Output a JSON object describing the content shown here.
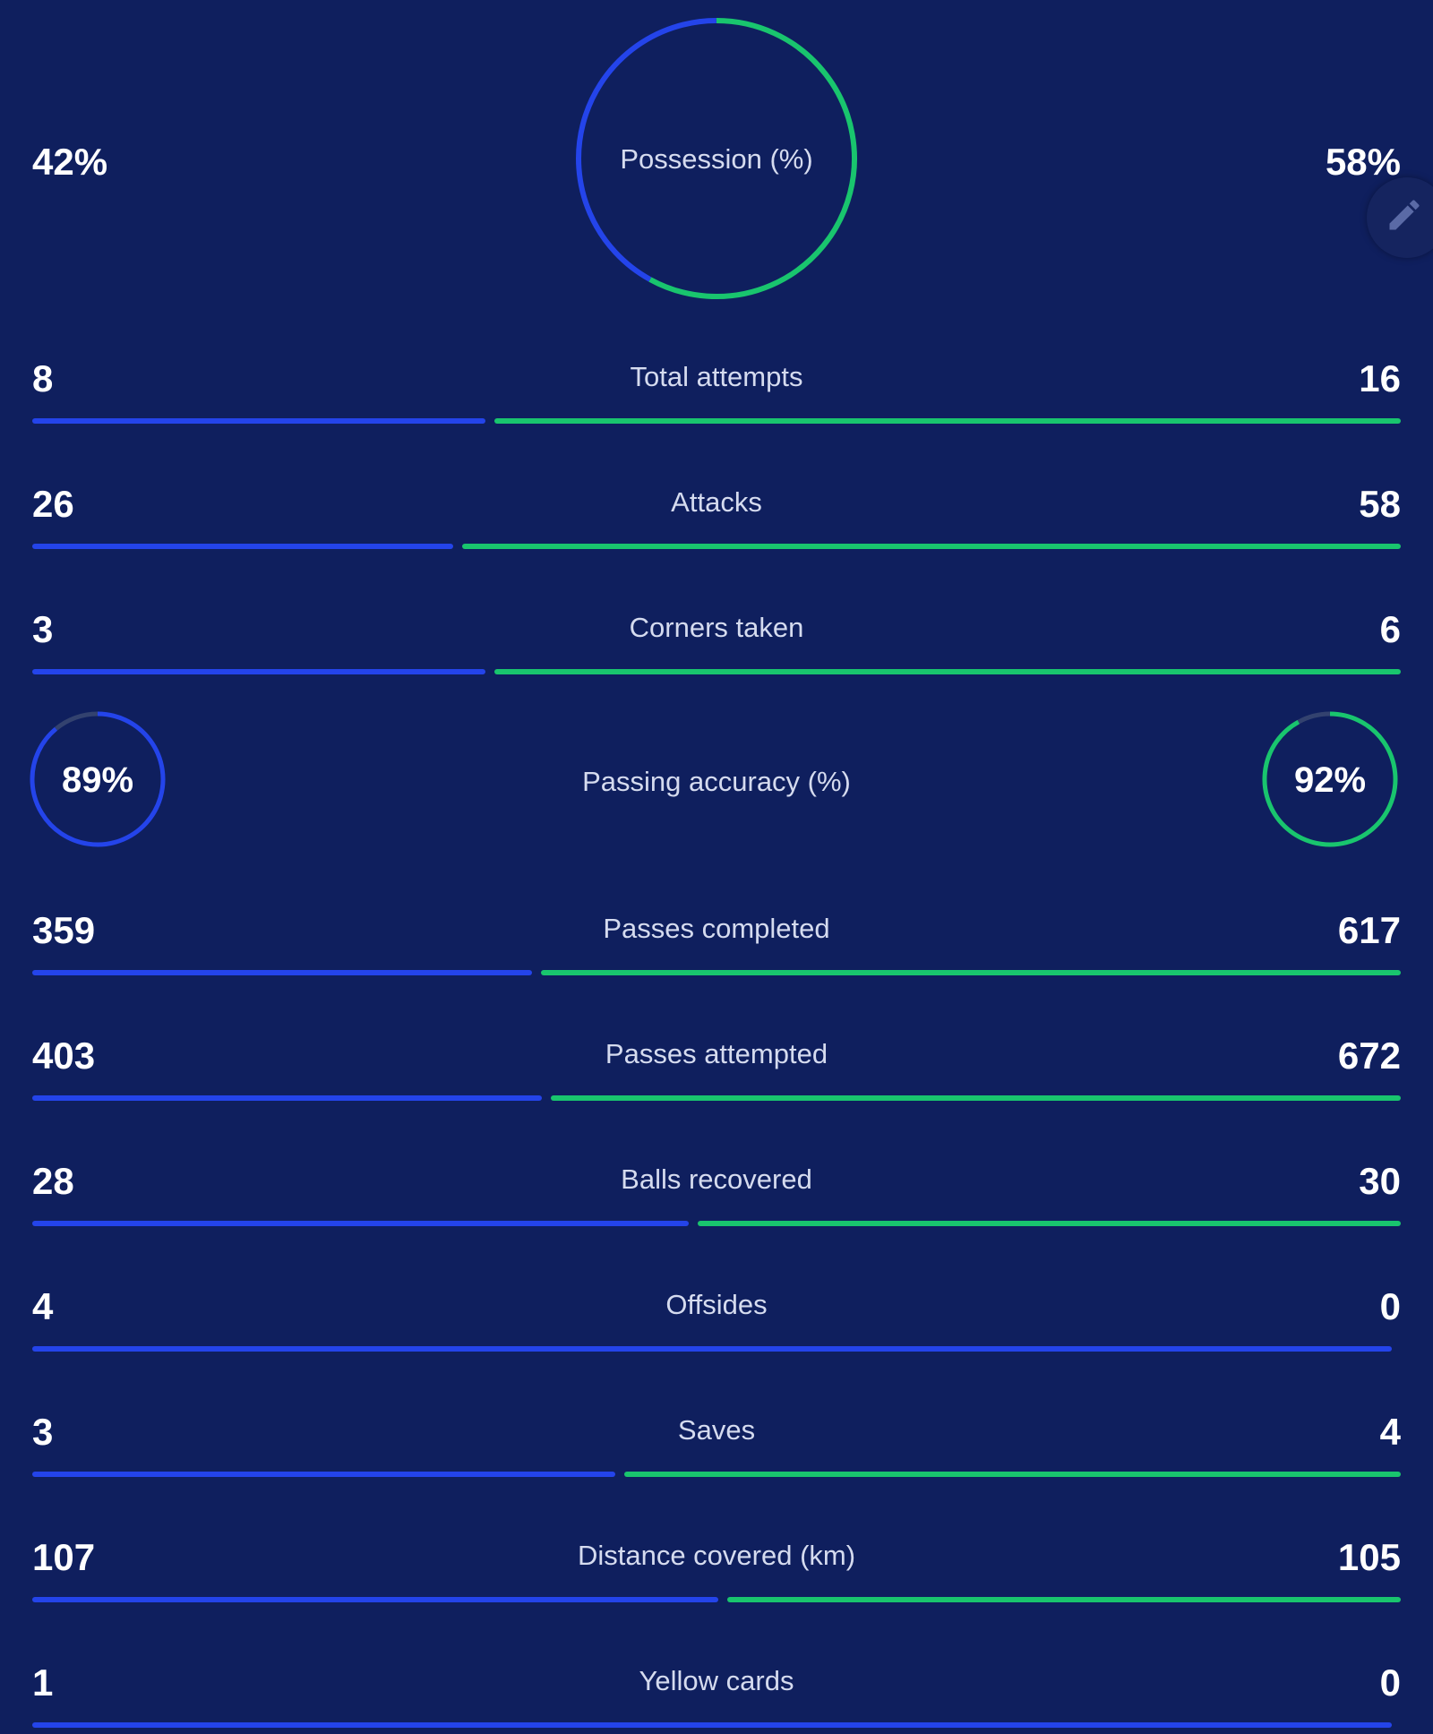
{
  "colors": {
    "background": "#0f1f5e",
    "home": "#2444ea",
    "away": "#19c56e",
    "ring_track": "#33426f",
    "label": "#d5dbef"
  },
  "possession": {
    "label": "Possession (%)",
    "home_display": "42%",
    "away_display": "58%",
    "home": 42,
    "away": 58
  },
  "passing_accuracy": {
    "label": "Passing accuracy (%)",
    "home_display": "89%",
    "away_display": "92%",
    "home": 89,
    "away": 92
  },
  "stats": [
    {
      "label": "Total attempts",
      "home": "8",
      "away": "16"
    },
    {
      "label": "Attacks",
      "home": "26",
      "away": "58"
    },
    {
      "label": "Corners taken",
      "home": "3",
      "away": "6"
    },
    {
      "label": "Passes completed",
      "home": "359",
      "away": "617"
    },
    {
      "label": "Passes attempted",
      "home": "403",
      "away": "672"
    },
    {
      "label": "Balls recovered",
      "home": "28",
      "away": "30"
    },
    {
      "label": "Offsides",
      "home": "4",
      "away": "0"
    },
    {
      "label": "Saves",
      "home": "3",
      "away": "4"
    },
    {
      "label": "Distance covered (km)",
      "home": "107",
      "away": "105"
    },
    {
      "label": "Yellow cards",
      "home": "1",
      "away": "0"
    }
  ],
  "icons": {
    "edit": "pencil-icon"
  }
}
